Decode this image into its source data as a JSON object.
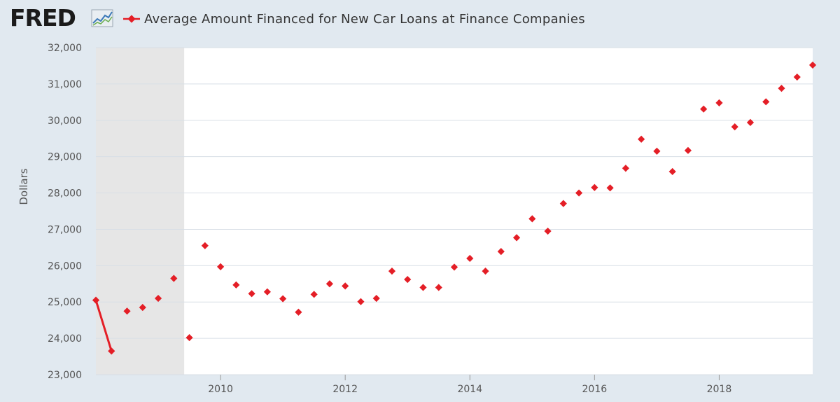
{
  "header": {
    "logo_text": "FRED",
    "logo_icon": "line-chart-icon",
    "legend_label": "Average Amount Financed for New Car Loans at Finance Companies"
  },
  "colors": {
    "series": "#e41e26",
    "plot_bg": "#ffffff",
    "page_bg": "#e1e9f0",
    "recession": "#e6e6e6",
    "grid": "#d8dfe6"
  },
  "chart_data": {
    "type": "scatter",
    "title": "Average Amount Financed for New Car Loans at Finance Companies",
    "xlabel": "",
    "ylabel": "Dollars",
    "ylim": [
      23000,
      32000
    ],
    "yticks": [
      23000,
      24000,
      25000,
      26000,
      27000,
      28000,
      29000,
      30000,
      31000,
      32000
    ],
    "ytick_labels": [
      "23,000",
      "24,000",
      "25,000",
      "26,000",
      "27,000",
      "28,000",
      "29,000",
      "30,000",
      "31,000",
      "32,000"
    ],
    "xlim": [
      "2008-01-01",
      "2019-07-01"
    ],
    "xticks": [
      "2010-01-01",
      "2012-01-01",
      "2014-01-01",
      "2016-01-01",
      "2018-01-01"
    ],
    "xtick_labels": [
      "2010",
      "2012",
      "2014",
      "2016",
      "2018"
    ],
    "recession": [
      "2008-01-01",
      "2009-06-01"
    ],
    "connected_segment": [
      "2008-01-01",
      "2008-04-01"
    ],
    "series": [
      {
        "name": "Average Amount Financed for New Car Loans at Finance Companies",
        "points": [
          [
            "2008-01-01",
            25050
          ],
          [
            "2008-04-01",
            23650
          ],
          [
            "2008-07-01",
            24750
          ],
          [
            "2008-10-01",
            24850
          ],
          [
            "2009-01-01",
            25100
          ],
          [
            "2009-04-01",
            25650
          ],
          [
            "2009-07-01",
            24020
          ],
          [
            "2009-10-01",
            26550
          ],
          [
            "2010-01-01",
            25970
          ],
          [
            "2010-04-01",
            25470
          ],
          [
            "2010-07-01",
            25230
          ],
          [
            "2010-10-01",
            25280
          ],
          [
            "2011-01-01",
            25090
          ],
          [
            "2011-04-01",
            24720
          ],
          [
            "2011-07-01",
            25210
          ],
          [
            "2011-10-01",
            25500
          ],
          [
            "2012-01-01",
            25440
          ],
          [
            "2012-04-01",
            25010
          ],
          [
            "2012-07-01",
            25100
          ],
          [
            "2012-10-01",
            25850
          ],
          [
            "2013-01-01",
            25620
          ],
          [
            "2013-04-01",
            25400
          ],
          [
            "2013-07-01",
            25400
          ],
          [
            "2013-10-01",
            25960
          ],
          [
            "2014-01-01",
            26200
          ],
          [
            "2014-04-01",
            25850
          ],
          [
            "2014-07-01",
            26390
          ],
          [
            "2014-10-01",
            26770
          ],
          [
            "2015-01-01",
            27290
          ],
          [
            "2015-04-01",
            26950
          ],
          [
            "2015-07-01",
            27710
          ],
          [
            "2015-10-01",
            28000
          ],
          [
            "2016-01-01",
            28150
          ],
          [
            "2016-04-01",
            28140
          ],
          [
            "2016-07-01",
            28680
          ],
          [
            "2016-10-01",
            29480
          ],
          [
            "2017-01-01",
            29150
          ],
          [
            "2017-04-01",
            28590
          ],
          [
            "2017-07-01",
            29170
          ],
          [
            "2017-10-01",
            30310
          ],
          [
            "2018-01-01",
            30480
          ],
          [
            "2018-04-01",
            29820
          ],
          [
            "2018-07-01",
            29940
          ],
          [
            "2018-10-01",
            30510
          ],
          [
            "2019-01-01",
            30880
          ],
          [
            "2019-04-01",
            31190
          ],
          [
            "2019-07-01",
            31520
          ]
        ]
      }
    ]
  }
}
